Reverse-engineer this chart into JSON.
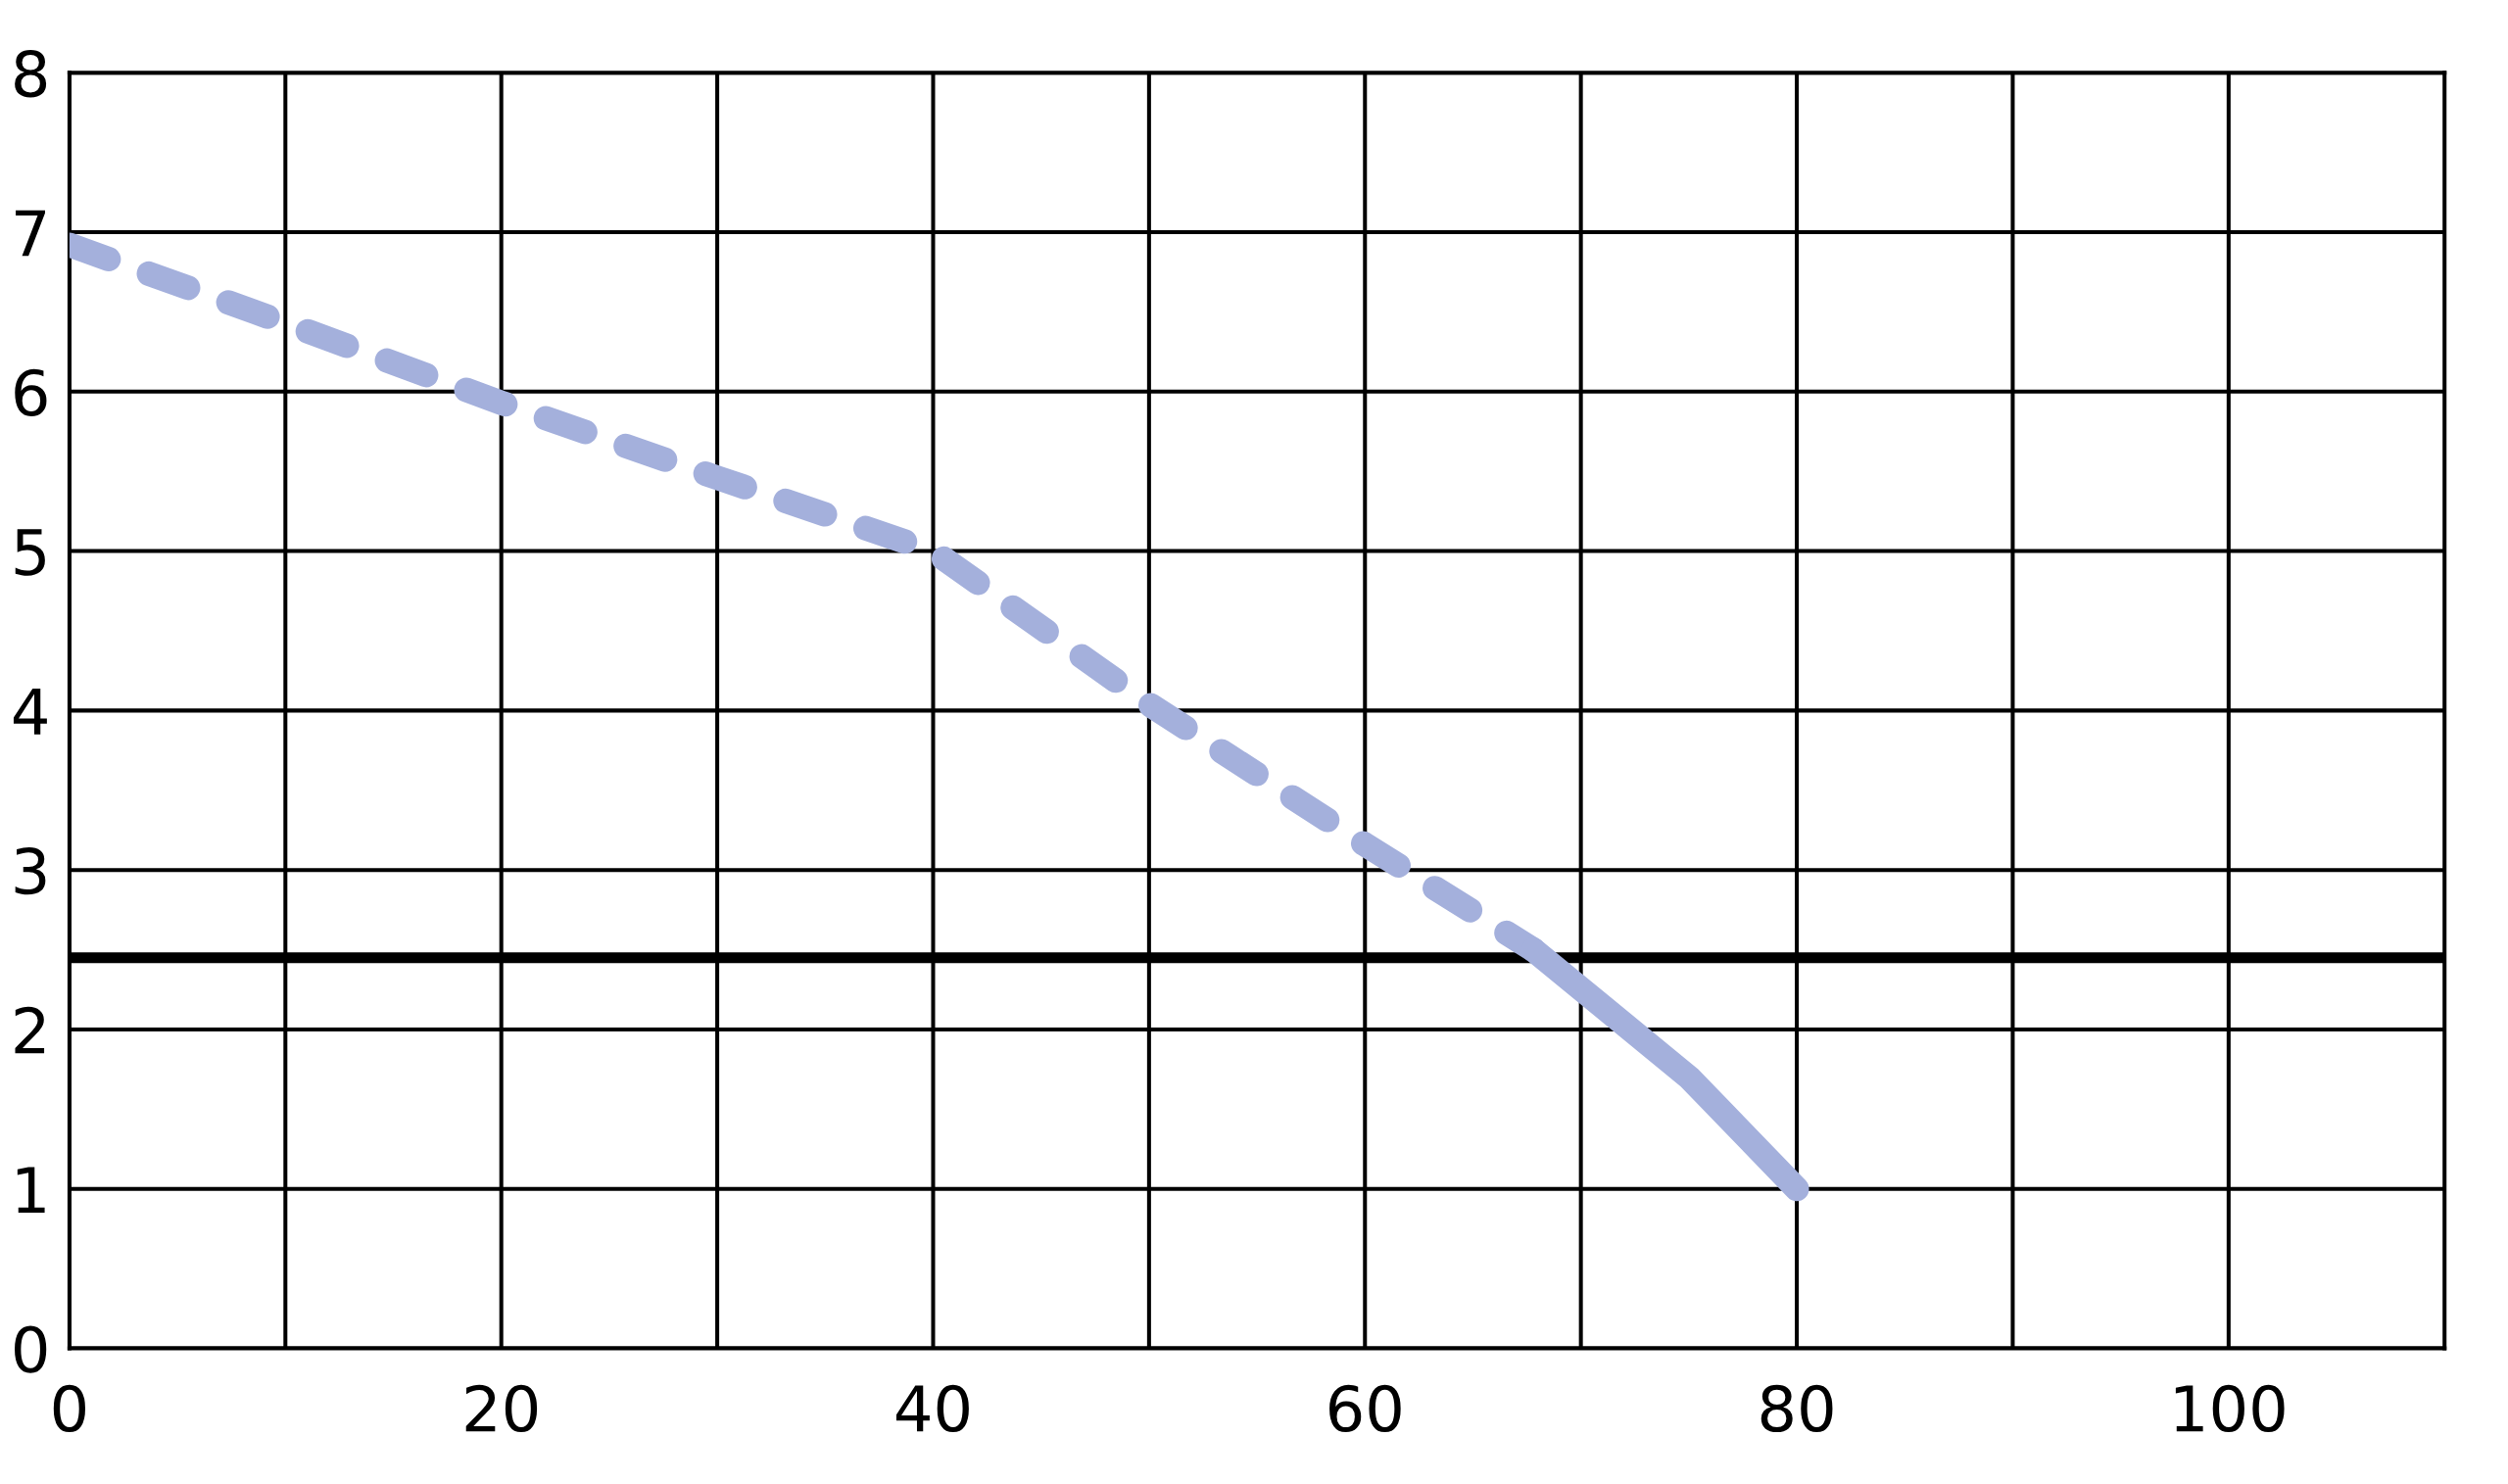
{
  "chart_data": {
    "type": "line",
    "series": [
      {
        "color": "#a4b0dc",
        "line_style": "dashed",
        "x": [
          0,
          10,
          20,
          30,
          40,
          50,
          60,
          67.8
        ],
        "values": [
          6.92,
          6.43,
          5.93,
          5.46,
          5.0,
          4.04,
          3.16,
          2.5
        ]
      },
      {
        "color": "#a4b0dc",
        "line_style": "solid",
        "x": [
          67.8,
          75,
          80
        ],
        "values": [
          2.5,
          1.7,
          1.0
        ]
      }
    ],
    "xlim": [
      0,
      110
    ],
    "ylim": [
      0,
      8
    ],
    "xticks": [
      0,
      {
        "value": 10,
        "label": null
      },
      20,
      {
        "value": 30,
        "label": null
      },
      40,
      {
        "value": 50,
        "label": null
      },
      60,
      {
        "value": 70,
        "label": null
      },
      80,
      {
        "value": 90,
        "label": null
      },
      100
    ],
    "yticks": [
      0,
      1,
      2,
      3,
      4,
      5,
      6,
      7,
      8
    ],
    "grid": true,
    "ref_lines": [
      {
        "axis": "y",
        "value": 2.45,
        "color": "#000000"
      }
    ]
  }
}
